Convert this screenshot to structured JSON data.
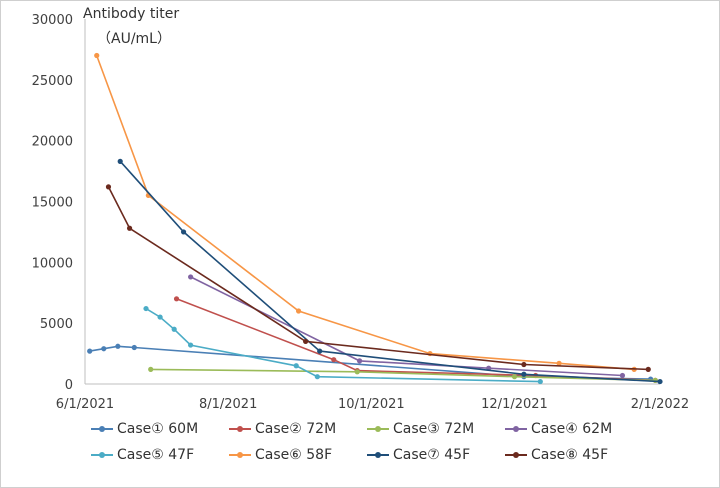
{
  "chart_data": {
    "type": "line",
    "ylabel": "Antibody titer",
    "yunit": "（AU/mL）",
    "ylim": [
      0,
      30000
    ],
    "yticks": [
      0,
      5000,
      10000,
      15000,
      20000,
      25000,
      30000
    ],
    "xlim": [
      "2021-06-01",
      "2022-02-01"
    ],
    "xticks": [
      {
        "date": "2021-06-01",
        "label": "6/1/2021"
      },
      {
        "date": "2021-08-01",
        "label": "8/1/2021"
      },
      {
        "date": "2021-10-01",
        "label": "10/1/2021"
      },
      {
        "date": "2021-12-01",
        "label": "12/1/2021"
      },
      {
        "date": "2022-02-01",
        "label": "2/1/2022"
      }
    ],
    "grid": false,
    "legend_position": "bottom",
    "series": [
      {
        "name": "Case① 60M",
        "color": "#4a7fb5",
        "points": [
          [
            "2021-06-03",
            2700
          ],
          [
            "2021-06-09",
            2900
          ],
          [
            "2021-06-15",
            3100
          ],
          [
            "2021-06-22",
            3000
          ],
          [
            "2021-12-05",
            600
          ],
          [
            "2022-01-28",
            400
          ]
        ]
      },
      {
        "name": "Case② 72M",
        "color": "#c0504d",
        "points": [
          [
            "2021-07-10",
            7000
          ],
          [
            "2021-09-15",
            2000
          ],
          [
            "2021-09-25",
            1100
          ],
          [
            "2021-12-10",
            700
          ],
          [
            "2022-01-30",
            300
          ]
        ]
      },
      {
        "name": "Case③ 72M",
        "color": "#9bbb59",
        "points": [
          [
            "2021-06-29",
            1200
          ],
          [
            "2021-09-25",
            1000
          ],
          [
            "2021-12-01",
            600
          ],
          [
            "2022-01-30",
            300
          ]
        ]
      },
      {
        "name": "Case④ 62M",
        "color": "#8064a2",
        "points": [
          [
            "2021-07-16",
            8800
          ],
          [
            "2021-09-26",
            1900
          ],
          [
            "2021-11-20",
            1300
          ],
          [
            "2022-01-16",
            700
          ]
        ]
      },
      {
        "name": "Case⑤ 47F",
        "color": "#4bacc6",
        "points": [
          [
            "2021-06-27",
            6200
          ],
          [
            "2021-07-03",
            5500
          ],
          [
            "2021-07-09",
            4500
          ],
          [
            "2021-07-16",
            3200
          ],
          [
            "2021-08-30",
            1500
          ],
          [
            "2021-09-08",
            600
          ],
          [
            "2021-12-12",
            200
          ]
        ]
      },
      {
        "name": "Case⑥ 58F",
        "color": "#f79646",
        "points": [
          [
            "2021-06-06",
            27000
          ],
          [
            "2021-06-28",
            15500
          ],
          [
            "2021-08-31",
            6000
          ],
          [
            "2021-10-26",
            2500
          ],
          [
            "2021-12-20",
            1700
          ],
          [
            "2022-01-21",
            1200
          ]
        ]
      },
      {
        "name": "Case⑦ 45F",
        "color": "#1f4e79",
        "points": [
          [
            "2021-06-16",
            18300
          ],
          [
            "2021-07-13",
            12500
          ],
          [
            "2021-09-09",
            2700
          ],
          [
            "2021-12-05",
            800
          ],
          [
            "2022-02-01",
            200
          ]
        ]
      },
      {
        "name": "Case⑧ 45F",
        "color": "#6b2a1e",
        "points": [
          [
            "2021-06-11",
            16200
          ],
          [
            "2021-06-20",
            12800
          ],
          [
            "2021-09-03",
            3500
          ],
          [
            "2021-12-05",
            1600
          ],
          [
            "2022-01-27",
            1200
          ]
        ]
      }
    ]
  }
}
